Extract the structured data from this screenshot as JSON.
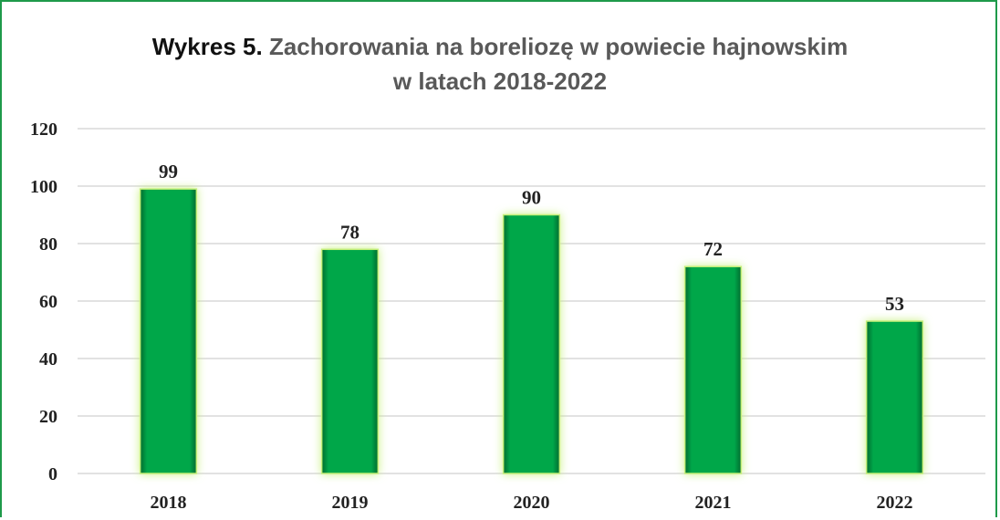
{
  "chart_data": {
    "type": "bar",
    "title_prefix": "Wykres 5.",
    "title_line1": "Zachorowania na boreliozę w powiecie hajnowskim",
    "title_line2": "w latach 2018-2022",
    "categories": [
      "2018",
      "2019",
      "2020",
      "2021",
      "2022"
    ],
    "values": [
      99,
      78,
      90,
      72,
      53
    ],
    "yticks": [
      0,
      20,
      40,
      60,
      80,
      100,
      120
    ],
    "ylim": [
      0,
      120
    ],
    "grid": true,
    "legend": "none",
    "colors": {
      "bar_fill": "#00a74a",
      "bar_edge": "#006b2e",
      "bar_glow": "#c6f07a",
      "frame": "#1e9a4a",
      "gridline": "#d9d9d9"
    }
  }
}
